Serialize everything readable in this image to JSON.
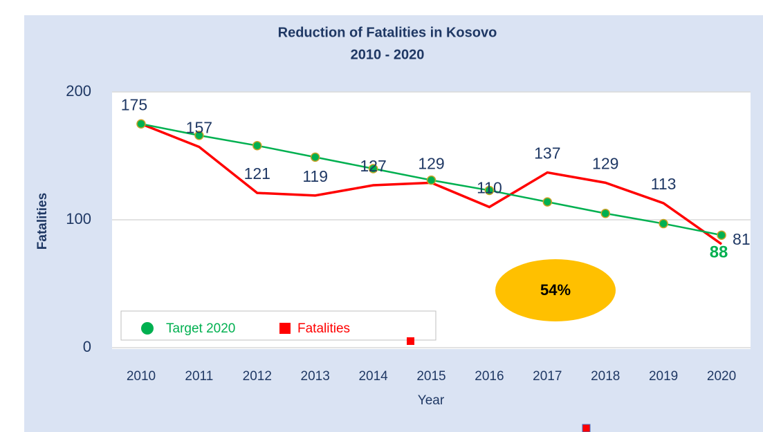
{
  "chart_data": {
    "type": "line",
    "title": "Reduction of Fatalities in Kosovo",
    "subtitle": "2010 - 2020",
    "x_label": "Year",
    "y_label": "Fatalities",
    "annotation": "54%",
    "categories": [
      "2010",
      "2011",
      "2012",
      "2013",
      "2014",
      "2015",
      "2016",
      "2017",
      "2018",
      "2019",
      "2020"
    ],
    "series": [
      {
        "name": "Target 2020",
        "color": "#00b050",
        "values": [
          175,
          166,
          158,
          149,
          140,
          131,
          123,
          114,
          105,
          97,
          88
        ]
      },
      {
        "name": "Fatalities",
        "color": "#ff0000",
        "values": [
          175,
          157,
          121,
          119,
          127,
          129,
          110,
          137,
          129,
          113,
          81
        ]
      }
    ],
    "ylim": [
      0,
      200
    ],
    "yticks": [
      0,
      100,
      200
    ],
    "grid": true,
    "legend": "bottom-left"
  }
}
